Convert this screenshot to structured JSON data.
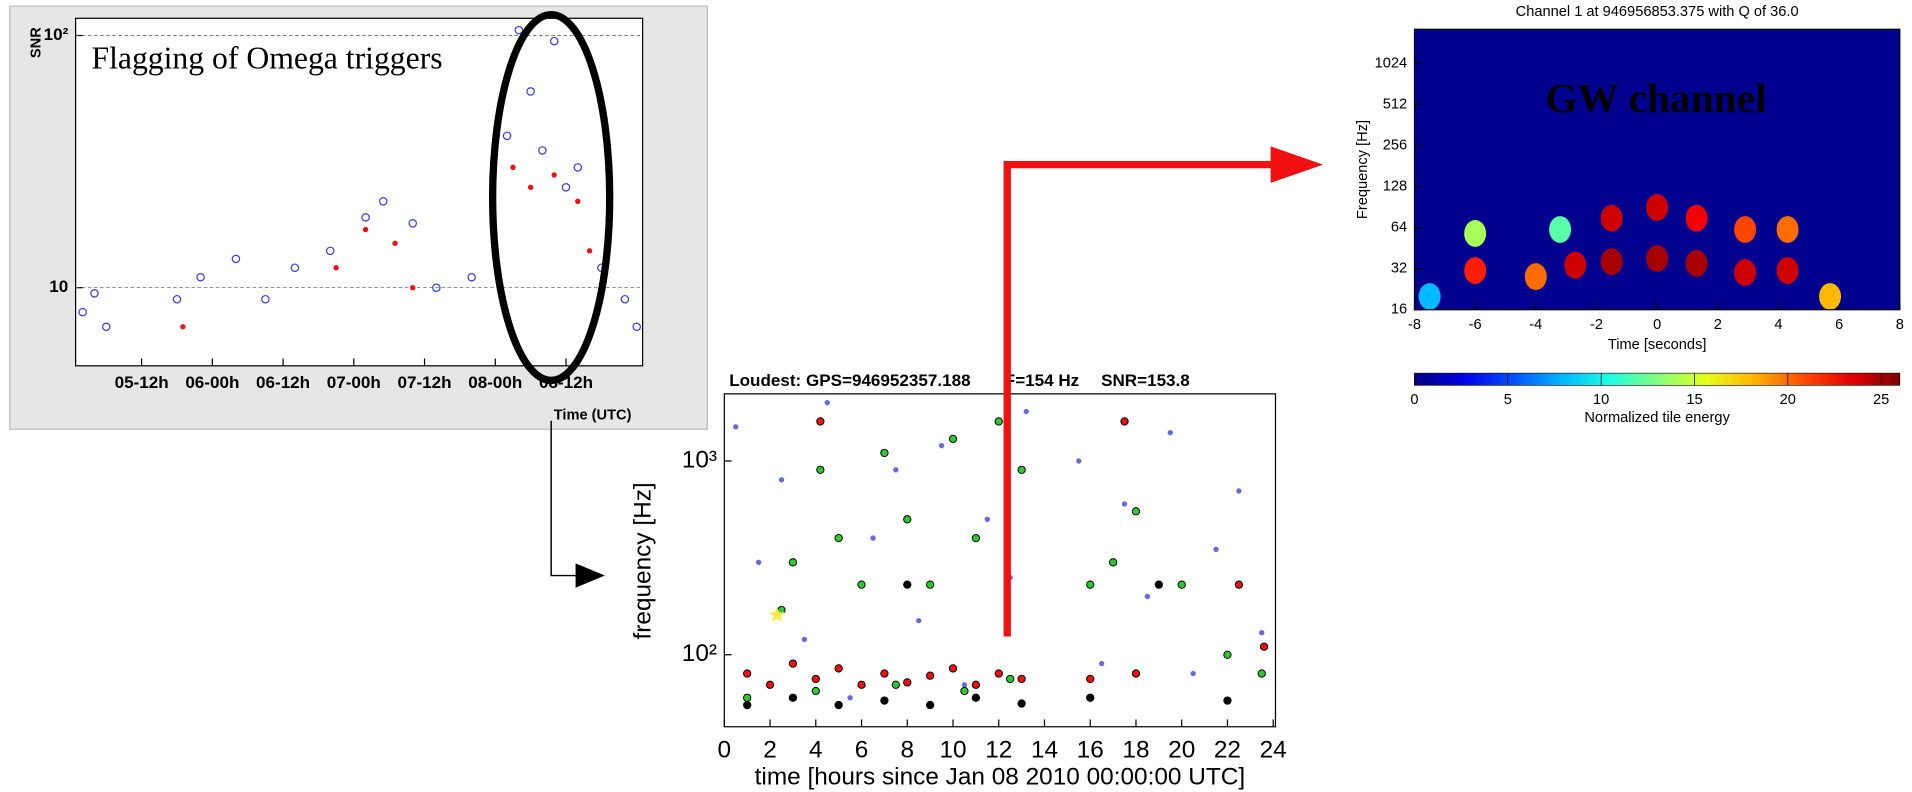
{
  "chart_data": [
    {
      "type": "scatter",
      "annotation": "Flagging of Omega triggers",
      "ylabel": "SNR",
      "xlabel": "Time (UTC)",
      "log_y": true,
      "grid": true,
      "xlim": [
        0.8,
        97
      ],
      "ylim": [
        4.9,
        117
      ],
      "xticks": [
        {
          "value": 12,
          "label": "05-12h"
        },
        {
          "value": 24,
          "label": "06-00h"
        },
        {
          "value": 36,
          "label": "06-12h"
        },
        {
          "value": 48,
          "label": "07-00h"
        },
        {
          "value": 60,
          "label": "07-12h"
        },
        {
          "value": 72,
          "label": "08-00h"
        },
        {
          "value": 84,
          "label": "08-12h"
        }
      ],
      "yticks": [
        10,
        {
          "value": 100,
          "label": "10²"
        }
      ],
      "series": [
        {
          "color": "#3a3ae8",
          "marker": "ring",
          "x": [
            2,
            4,
            6,
            18,
            22,
            28,
            33,
            38,
            44,
            50,
            53,
            58,
            62,
            68,
            74,
            76,
            78,
            80,
            82,
            84,
            86,
            90,
            94,
            96
          ],
          "values": [
            8,
            9.5,
            7,
            9,
            11,
            13,
            9,
            12,
            14,
            19,
            22,
            18,
            10,
            11,
            40,
            105,
            60,
            35,
            95,
            25,
            30,
            12,
            9,
            7
          ]
        },
        {
          "color": "#ee1111",
          "marker": "dot",
          "x": [
            19,
            45,
            50,
            55,
            58,
            75,
            78,
            82,
            86,
            88
          ],
          "values": [
            7,
            12,
            17,
            15,
            10,
            30,
            25,
            28,
            22,
            14
          ]
        }
      ]
    },
    {
      "type": "scatter",
      "title": "Loudest: GPS=946952357.188",
      "title_frequency": "F=154 Hz",
      "title_snr": "SNR=153.8",
      "xlabel": "time [hours since Jan 08 2010 00:00:00 UTC]",
      "ylabel": "frequency [Hz]",
      "log_y": true,
      "grid": false,
      "xlim": [
        0,
        24.1
      ],
      "ylim": [
        42.5,
        2220
      ],
      "xticks": [
        0,
        2,
        4,
        6,
        8,
        10,
        12,
        14,
        16,
        18,
        20,
        22,
        24
      ],
      "yticks": [
        {
          "value": 100,
          "label": "10²"
        },
        {
          "value": 1000,
          "label": "10³"
        }
      ],
      "series": [
        {
          "color": "#6a6adf",
          "marker": "dot",
          "x": [
            0.5,
            1.5,
            2.5,
            3.5,
            4.5,
            5.5,
            6.5,
            7.5,
            8.5,
            9.5,
            10.5,
            11.5,
            12.5,
            13.2,
            15.5,
            16.5,
            17.5,
            18.5,
            19.5,
            20.5,
            21.5,
            22.5,
            23.5
          ],
          "values": [
            1500,
            300,
            800,
            120,
            2000,
            60,
            400,
            900,
            150,
            1200,
            70,
            500,
            250,
            1800,
            1000,
            90,
            600,
            200,
            1400,
            80,
            350,
            700,
            130
          ]
        },
        {
          "color": "#2ec92e",
          "marker": "circle",
          "x": [
            1,
            2.5,
            3,
            4.2,
            5,
            6,
            7,
            8,
            9,
            10,
            11,
            12,
            13,
            4,
            7.5,
            10.5,
            12.5,
            16,
            17,
            18,
            20,
            22,
            23.5
          ],
          "values": [
            60,
            170,
            300,
            900,
            400,
            230,
            1100,
            500,
            230,
            1300,
            400,
            1600,
            900,
            65,
            70,
            65,
            75,
            230,
            300,
            550,
            230,
            100,
            80
          ]
        },
        {
          "color": "#ee1111",
          "marker": "circle",
          "x": [
            1,
            2,
            3,
            4,
            5,
            6,
            7,
            8,
            9,
            10,
            11,
            12,
            13,
            4.2,
            16,
            17.5,
            18,
            22.5,
            23.6
          ],
          "values": [
            80,
            70,
            90,
            75,
            85,
            70,
            80,
            72,
            78,
            85,
            70,
            80,
            75,
            1600,
            75,
            1600,
            80,
            230,
            110
          ]
        },
        {
          "color": "#000000",
          "marker": "circle",
          "x": [
            1,
            3,
            5,
            7,
            9,
            11,
            13,
            8,
            16,
            19,
            22
          ],
          "values": [
            55,
            60,
            55,
            58,
            55,
            60,
            56,
            230,
            60,
            230,
            58
          ]
        },
        {
          "color": "#ffe84a",
          "marker": "star",
          "x": [
            2.3
          ],
          "values": [
            160
          ]
        }
      ]
    },
    {
      "type": "heatmap",
      "title": "Channel 1 at 946956853.375 with Q of 36.0",
      "annotation": "GW channel",
      "xlabel": "Time [seconds]",
      "ylabel": "Frequency [Hz]",
      "colorbar_label": "Normalized tile energy",
      "log_y": true,
      "xlim": [
        -8,
        8
      ],
      "ylim": [
        16,
        1823
      ],
      "clim": [
        0,
        26
      ],
      "xticks": [
        -8,
        -6,
        -4,
        -2,
        0,
        2,
        4,
        6,
        8
      ],
      "yticks": [
        16,
        32,
        64,
        128,
        256,
        512,
        1024
      ],
      "cticks": [
        0,
        5,
        10,
        15,
        20,
        25
      ],
      "tiles": {
        "x": [
          -6,
          -6,
          -4,
          -3.2,
          -2.7,
          -1.5,
          -1.5,
          0,
          0,
          1.3,
          1.3,
          2.9,
          2.9,
          4.3,
          4.3,
          5.7,
          -7.5
        ],
        "y": [
          31,
          58,
          28,
          62,
          34,
          36,
          75,
          38,
          90,
          35,
          75,
          30,
          62,
          31,
          62,
          20,
          20
        ],
        "values": [
          22,
          14,
          20,
          12,
          24,
          25,
          24,
          25,
          24,
          25,
          23,
          24,
          21,
          24,
          20,
          18,
          8
        ]
      }
    }
  ]
}
